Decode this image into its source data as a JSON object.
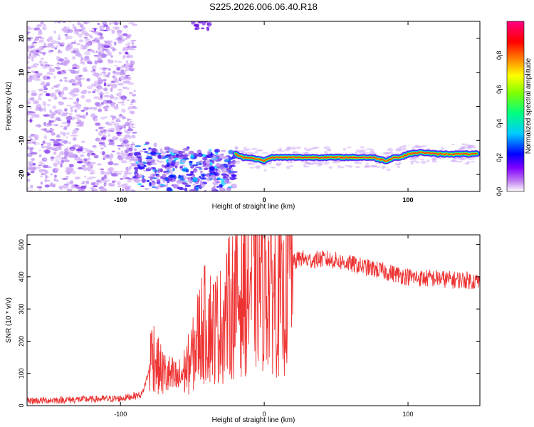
{
  "title": "S225.2026.006.06.40.R18",
  "chart_data": [
    {
      "type": "heatmap",
      "xlabel": "Height of straight line (km)",
      "ylabel": "Frequency (Hz)",
      "xlim": [
        -165,
        150
      ],
      "ylim": [
        -25,
        25
      ],
      "xticks": [
        -100,
        0,
        100
      ],
      "xtick_labels": [
        "-100",
        "0",
        "100"
      ],
      "yticks": [
        -20,
        -10,
        0,
        10,
        20
      ],
      "ytick_labels": [
        "-20",
        "-10",
        "0",
        "10",
        "20"
      ],
      "colorbar": {
        "label": "Normalized spectral amplitude",
        "range": [
          0.0,
          1.0
        ],
        "ticks": [
          0.0,
          0.2,
          0.4,
          0.6,
          0.8
        ],
        "tick_labels": [
          "0.0",
          "0.2",
          "0.4",
          "0.6",
          "0.8"
        ],
        "colors": [
          "#ffffff",
          "#a020f0",
          "#0000ff",
          "#00ffff",
          "#00ff00",
          "#ffff00",
          "#ff8000",
          "#ff0000",
          "#ff00a0"
        ]
      },
      "signal_track": {
        "x": [
          -20,
          -15,
          -10,
          -5,
          0,
          5,
          10,
          20,
          40,
          60,
          75,
          80,
          85,
          90,
          95,
          100,
          110,
          120,
          130,
          140,
          148
        ],
        "frequency": [
          -14,
          -15,
          -15,
          -15.5,
          -16,
          -15,
          -15,
          -15,
          -15,
          -15,
          -15,
          -15.5,
          -16,
          -15,
          -15,
          -14,
          -13.5,
          -14,
          -14,
          -14,
          -14
        ]
      },
      "noise_region_x": [
        -165,
        -90
      ],
      "scattered_region_x": [
        -90,
        -20
      ]
    },
    {
      "type": "line",
      "xlabel": "Height of straight line (km)",
      "ylabel": "SNR (10 * v/v)",
      "xlim": [
        -165,
        150
      ],
      "ylim": [
        0,
        530
      ],
      "xticks": [
        -100,
        0,
        100
      ],
      "xtick_labels": [
        "-100",
        "0",
        "100"
      ],
      "yticks": [
        0,
        100,
        200,
        300,
        400,
        500
      ],
      "ytick_labels": [
        "0",
        "100",
        "200",
        "300",
        "400",
        "500"
      ],
      "color": "#ee3333",
      "series": [
        {
          "x": [
            -165,
            -140,
            -120,
            -100,
            -85,
            -80,
            -78,
            -75,
            -70,
            -65,
            -60,
            -55,
            -50,
            -45,
            -40,
            -35,
            -30,
            -25,
            -20,
            -15,
            -10,
            -5,
            0,
            5,
            10,
            13,
            15,
            20,
            25,
            30,
            40,
            50,
            60,
            70,
            80,
            90,
            100,
            110,
            120,
            130,
            140,
            150
          ],
          "values": [
            15,
            18,
            20,
            22,
            35,
            110,
            180,
            130,
            100,
            90,
            80,
            110,
            150,
            230,
            260,
            240,
            250,
            300,
            330,
            350,
            380,
            390,
            400,
            380,
            330,
            290,
            380,
            440,
            460,
            450,
            455,
            450,
            440,
            430,
            420,
            410,
            400,
            395,
            395,
            390,
            390,
            385
          ]
        }
      ]
    }
  ]
}
